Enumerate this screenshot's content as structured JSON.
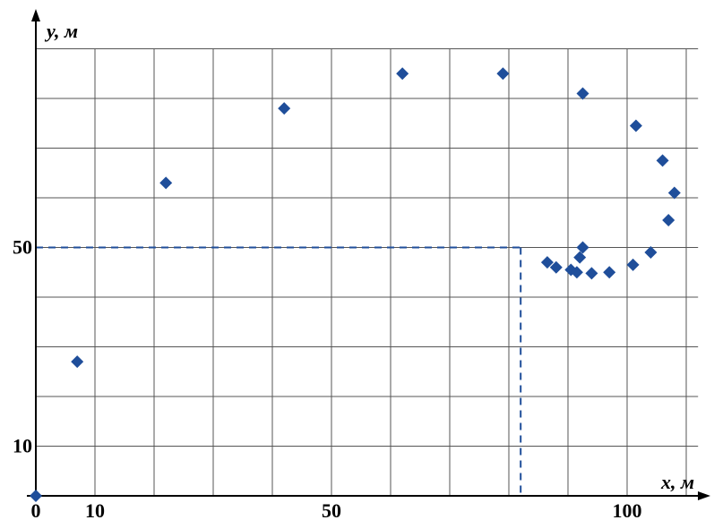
{
  "chart_data": {
    "type": "scatter",
    "xlabel": "x, м",
    "ylabel": "y, м",
    "x_ticks": [
      {
        "value": 0,
        "label": "0"
      },
      {
        "value": 10,
        "label": "10"
      },
      {
        "value": 50,
        "label": "50"
      },
      {
        "value": 100,
        "label": "100"
      }
    ],
    "y_ticks": [
      {
        "value": 10,
        "label": "10"
      },
      {
        "value": 50,
        "label": "50"
      }
    ],
    "xlim": [
      0,
      112
    ],
    "ylim": [
      0,
      90
    ],
    "grid": true,
    "grid_step": 10,
    "marker_color": "#1f4e9a",
    "guide_color": "#1f4e9a",
    "guide_point": {
      "x": 82,
      "y": 50
    },
    "points": [
      {
        "x": 0,
        "y": 0
      },
      {
        "x": 7,
        "y": 27
      },
      {
        "x": 22,
        "y": 63
      },
      {
        "x": 42,
        "y": 78
      },
      {
        "x": 62,
        "y": 85
      },
      {
        "x": 79,
        "y": 85
      },
      {
        "x": 92.5,
        "y": 81
      },
      {
        "x": 101.5,
        "y": 74.5
      },
      {
        "x": 106,
        "y": 67.5
      },
      {
        "x": 108,
        "y": 61
      },
      {
        "x": 107,
        "y": 55.5
      },
      {
        "x": 104,
        "y": 49
      },
      {
        "x": 101,
        "y": 46.5
      },
      {
        "x": 97,
        "y": 45
      },
      {
        "x": 94,
        "y": 44.8
      },
      {
        "x": 90.5,
        "y": 45.5
      },
      {
        "x": 88,
        "y": 46
      },
      {
        "x": 86.5,
        "y": 47
      },
      {
        "x": 91.5,
        "y": 45
      },
      {
        "x": 92,
        "y": 48
      },
      {
        "x": 92.5,
        "y": 50
      }
    ]
  }
}
